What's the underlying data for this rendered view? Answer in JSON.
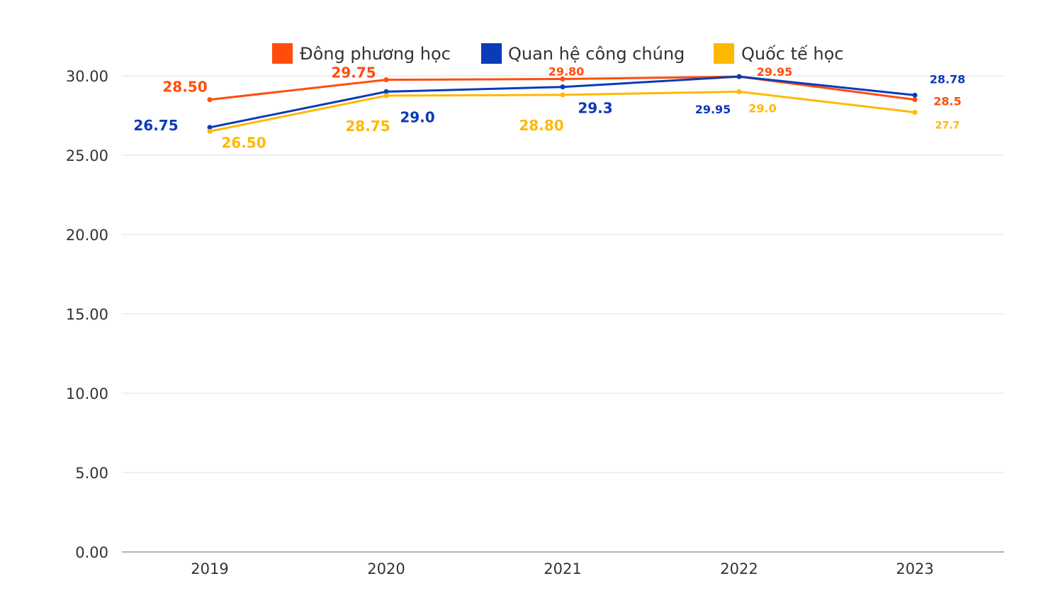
{
  "chart_data": {
    "type": "line",
    "title": "",
    "xlabel": "",
    "ylabel": "",
    "categories": [
      "2019",
      "2020",
      "2021",
      "2022",
      "2023"
    ],
    "ylim": [
      0,
      30
    ],
    "yticks": [
      "0.00",
      "5.00",
      "10.00",
      "15.00",
      "20.00",
      "25.00",
      "30.00"
    ],
    "grid": true,
    "legend_position": "top",
    "series": [
      {
        "name": "Đông phương học",
        "color": "#FF4D0D",
        "values": [
          28.5,
          29.75,
          29.8,
          29.95,
          28.5
        ],
        "labels": [
          "28.50",
          "29.75",
          "29.80",
          "29.95",
          "28.5"
        ]
      },
      {
        "name": "Quan hệ công chúng",
        "color": "#0A3BB8",
        "values": [
          26.75,
          29.0,
          29.3,
          29.95,
          28.78
        ],
        "labels": [
          "26.75",
          "29.0",
          "29.3",
          "29.95",
          "28.78"
        ]
      },
      {
        "name": "Quốc tế học",
        "color": "#FFB800",
        "values": [
          26.5,
          28.75,
          28.8,
          29.0,
          27.7
        ],
        "labels": [
          "26.50",
          "28.75",
          "28.80",
          "29.0",
          "27.7"
        ]
      }
    ]
  }
}
